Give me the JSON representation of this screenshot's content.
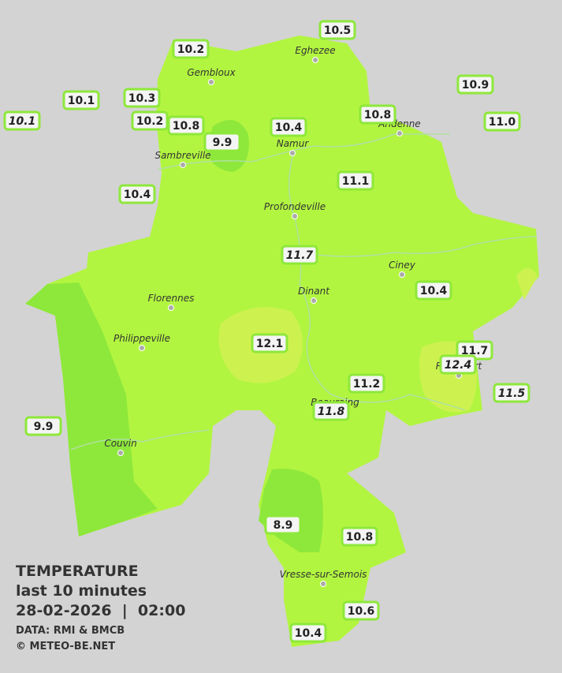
{
  "legend": {
    "title": "TEMPERATURE",
    "period": "last 10 minutes",
    "timestamp": "28-02-2026  |  02:00",
    "source": "DATA: RMI & BMCB",
    "copyright": "© METEO-BE.NET"
  },
  "cities": [
    {
      "name": "Eghezee"
    },
    {
      "name": "Gembloux"
    },
    {
      "name": "Andenne"
    },
    {
      "name": "Namur"
    },
    {
      "name": "Sambreville"
    },
    {
      "name": "Profondeville"
    },
    {
      "name": "Ciney"
    },
    {
      "name": "Dinant"
    },
    {
      "name": "Florennes"
    },
    {
      "name": "Philippeville"
    },
    {
      "name": "Rochefort"
    },
    {
      "name": "Beauraing"
    },
    {
      "name": "Couvin"
    },
    {
      "name": "Vresse-sur-Semois"
    }
  ],
  "stations": [
    {
      "label": "10.5"
    },
    {
      "label": "10.2"
    },
    {
      "label": "10.9"
    },
    {
      "label": "10.1"
    },
    {
      "label": "10.3"
    },
    {
      "label": "10.1",
      "italic": true
    },
    {
      "label": "10.2"
    },
    {
      "label": "10.8"
    },
    {
      "label": "10.8"
    },
    {
      "label": "11.0"
    },
    {
      "label": "10.4"
    },
    {
      "label": "9.9"
    },
    {
      "label": "10.4"
    },
    {
      "label": "11.1"
    },
    {
      "label": "11.7",
      "italic": true
    },
    {
      "label": "10.4"
    },
    {
      "label": "12.1"
    },
    {
      "label": "11.7"
    },
    {
      "label": "12.4",
      "italic": true
    },
    {
      "label": "11.2"
    },
    {
      "label": "11.8",
      "italic": true
    },
    {
      "label": "11.5",
      "italic": true
    },
    {
      "label": "9.9"
    },
    {
      "label": "8.9"
    },
    {
      "label": "10.8"
    },
    {
      "label": "10.6"
    },
    {
      "label": "10.4"
    }
  ]
}
